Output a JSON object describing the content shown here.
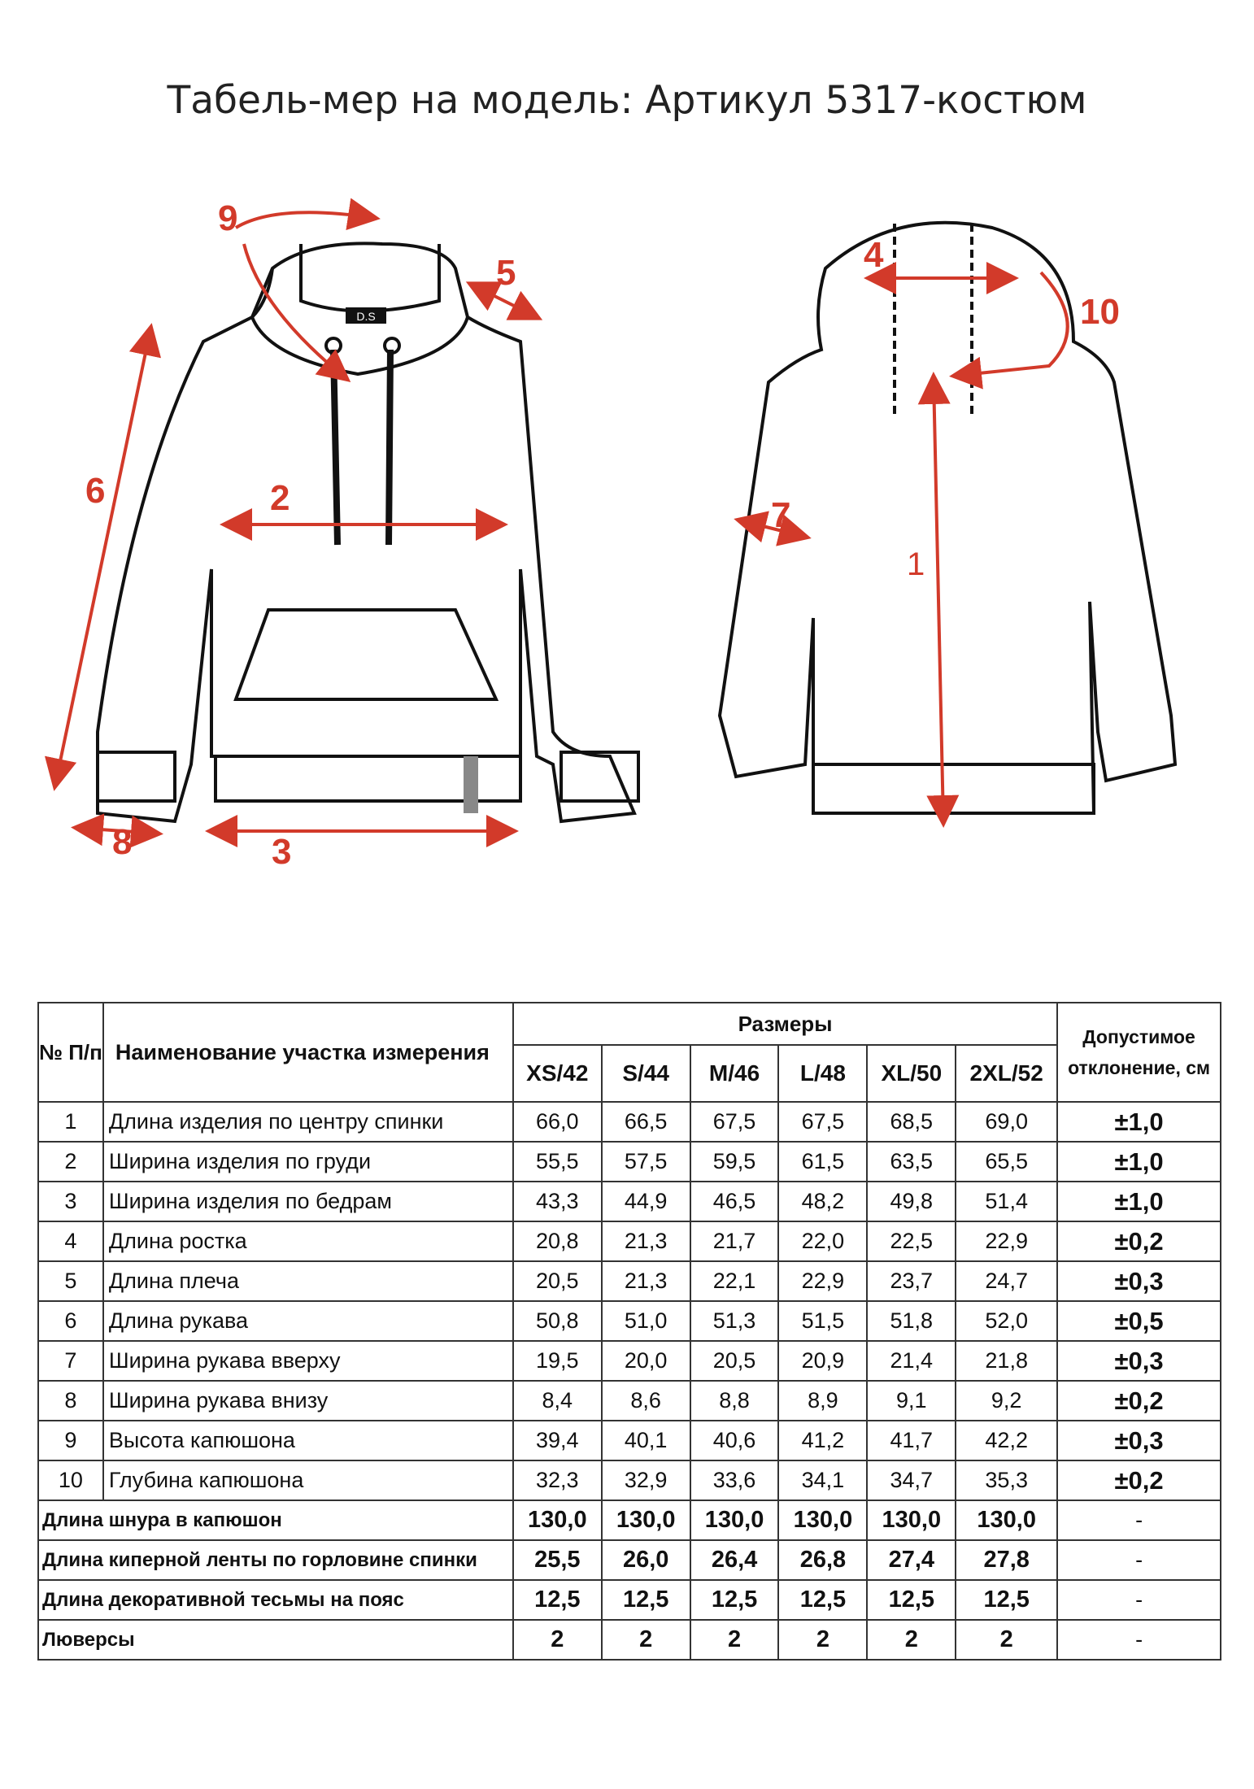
{
  "title": "Табель-мер на модель: Артикул 5317-костюм",
  "drawing": {
    "accent_color": "#d23a2a",
    "front_labels": [
      "9",
      "5",
      "6",
      "2",
      "8",
      "3"
    ],
    "back_labels": [
      "4",
      "10",
      "7",
      "1"
    ],
    "logo_text": "D.S"
  },
  "table": {
    "header": {
      "num": "№ П/п",
      "name": "Наименование участка измерения",
      "sizes_group": "Размеры",
      "tolerance": "Допустимое отклонение, см",
      "sizes": [
        "XS/42",
        "S/44",
        "M/46",
        "L/48",
        "XL/50",
        "2XL/52"
      ]
    },
    "rows": [
      {
        "n": "1",
        "name": "Длина изделия по центру спинки",
        "v": [
          "66,0",
          "66,5",
          "67,5",
          "67,5",
          "68,5",
          "69,0"
        ],
        "tol": "±1,0"
      },
      {
        "n": "2",
        "name": "Ширина изделия по груди",
        "v": [
          "55,5",
          "57,5",
          "59,5",
          "61,5",
          "63,5",
          "65,5"
        ],
        "tol": "±1,0"
      },
      {
        "n": "3",
        "name": "Ширина изделия по бедрам",
        "v": [
          "43,3",
          "44,9",
          "46,5",
          "48,2",
          "49,8",
          "51,4"
        ],
        "tol": "±1,0"
      },
      {
        "n": "4",
        "name": "Длина ростка",
        "v": [
          "20,8",
          "21,3",
          "21,7",
          "22,0",
          "22,5",
          "22,9"
        ],
        "tol": "±0,2"
      },
      {
        "n": "5",
        "name": "Длина плеча",
        "v": [
          "20,5",
          "21,3",
          "22,1",
          "22,9",
          "23,7",
          "24,7"
        ],
        "tol": "±0,3"
      },
      {
        "n": "6",
        "name": "Длина рукава",
        "v": [
          "50,8",
          "51,0",
          "51,3",
          "51,5",
          "51,8",
          "52,0"
        ],
        "tol": "±0,5"
      },
      {
        "n": "7",
        "name": "Ширина рукава вверху",
        "v": [
          "19,5",
          "20,0",
          "20,5",
          "20,9",
          "21,4",
          "21,8"
        ],
        "tol": "±0,3"
      },
      {
        "n": "8",
        "name": "Ширина рукава внизу",
        "v": [
          "8,4",
          "8,6",
          "8,8",
          "8,9",
          "9,1",
          "9,2"
        ],
        "tol": "±0,2"
      },
      {
        "n": "9",
        "name": "Высота капюшона",
        "v": [
          "39,4",
          "40,1",
          "40,6",
          "41,2",
          "41,7",
          "42,2"
        ],
        "tol": "±0,3"
      },
      {
        "n": "10",
        "name": "Глубина капюшона",
        "v": [
          "32,3",
          "32,9",
          "33,6",
          "34,1",
          "34,7",
          "35,3"
        ],
        "tol": "±0,2"
      }
    ],
    "extra_rows": [
      {
        "name": "Длина шнура в капюшон",
        "v": [
          "130,0",
          "130,0",
          "130,0",
          "130,0",
          "130,0",
          "130,0"
        ],
        "tol": "-"
      },
      {
        "name": "Длина киперной ленты по горловине спинки",
        "v": [
          "25,5",
          "26,0",
          "26,4",
          "26,8",
          "27,4",
          "27,8"
        ],
        "tol": "-"
      },
      {
        "name": "Длина декоративной тесьмы на пояс",
        "v": [
          "12,5",
          "12,5",
          "12,5",
          "12,5",
          "12,5",
          "12,5"
        ],
        "tol": "-"
      },
      {
        "name": "Люверсы",
        "v": [
          "2",
          "2",
          "2",
          "2",
          "2",
          "2"
        ],
        "tol": "-"
      }
    ]
  }
}
